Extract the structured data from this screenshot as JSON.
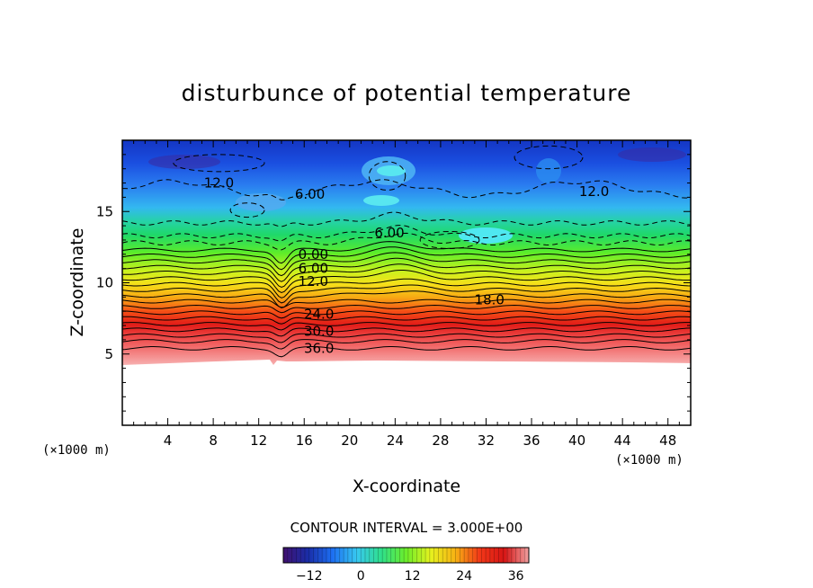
{
  "chart_data": {
    "type": "heatmap",
    "title": "disturbunce of potential temperature",
    "xlabel": "X-coordinate",
    "ylabel": "Z-coordinate",
    "x_unit": "(×1000 m)",
    "y_unit": "(×1000 m)",
    "xlim": [
      0,
      50
    ],
    "ylim": [
      0,
      20
    ],
    "x_ticks": [
      4,
      8,
      12,
      16,
      20,
      24,
      28,
      32,
      36,
      40,
      44,
      48
    ],
    "y_ticks": [
      5,
      10,
      15
    ],
    "contour_interval_text": "CONTOUR INTERVAL = 3.000E+00",
    "colorbar": {
      "min": -18,
      "max": 39,
      "ticks": [
        -12,
        0,
        12,
        24,
        36
      ],
      "colors": [
        "#40106e",
        "#1a2da8",
        "#1d6ff2",
        "#37c8f0",
        "#2fe08a",
        "#6cee2a",
        "#e6f21e",
        "#f7b214",
        "#f23818",
        "#d61515",
        "#f0a0a0"
      ]
    },
    "contour_labels": [
      {
        "text": "12.0",
        "x": 8.5,
        "z": 17.0
      },
      {
        "text": "6.00",
        "x": 16.5,
        "z": 16.2
      },
      {
        "text": "6.00",
        "x": 23.5,
        "z": 13.5
      },
      {
        "text": "12.0",
        "x": 41.5,
        "z": 16.4
      },
      {
        "text": "0.00",
        "x": 16.8,
        "z": 12.0
      },
      {
        "text": "6.00",
        "x": 16.8,
        "z": 11.0
      },
      {
        "text": "12.0",
        "x": 16.8,
        "z": 10.1
      },
      {
        "text": "18.0",
        "x": 32.3,
        "z": 8.8
      },
      {
        "text": "24.0",
        "x": 17.3,
        "z": 7.8
      },
      {
        "text": "30.0",
        "x": 17.3,
        "z": 6.6
      },
      {
        "text": "36.0",
        "x": 17.3,
        "z": 5.4
      }
    ]
  }
}
